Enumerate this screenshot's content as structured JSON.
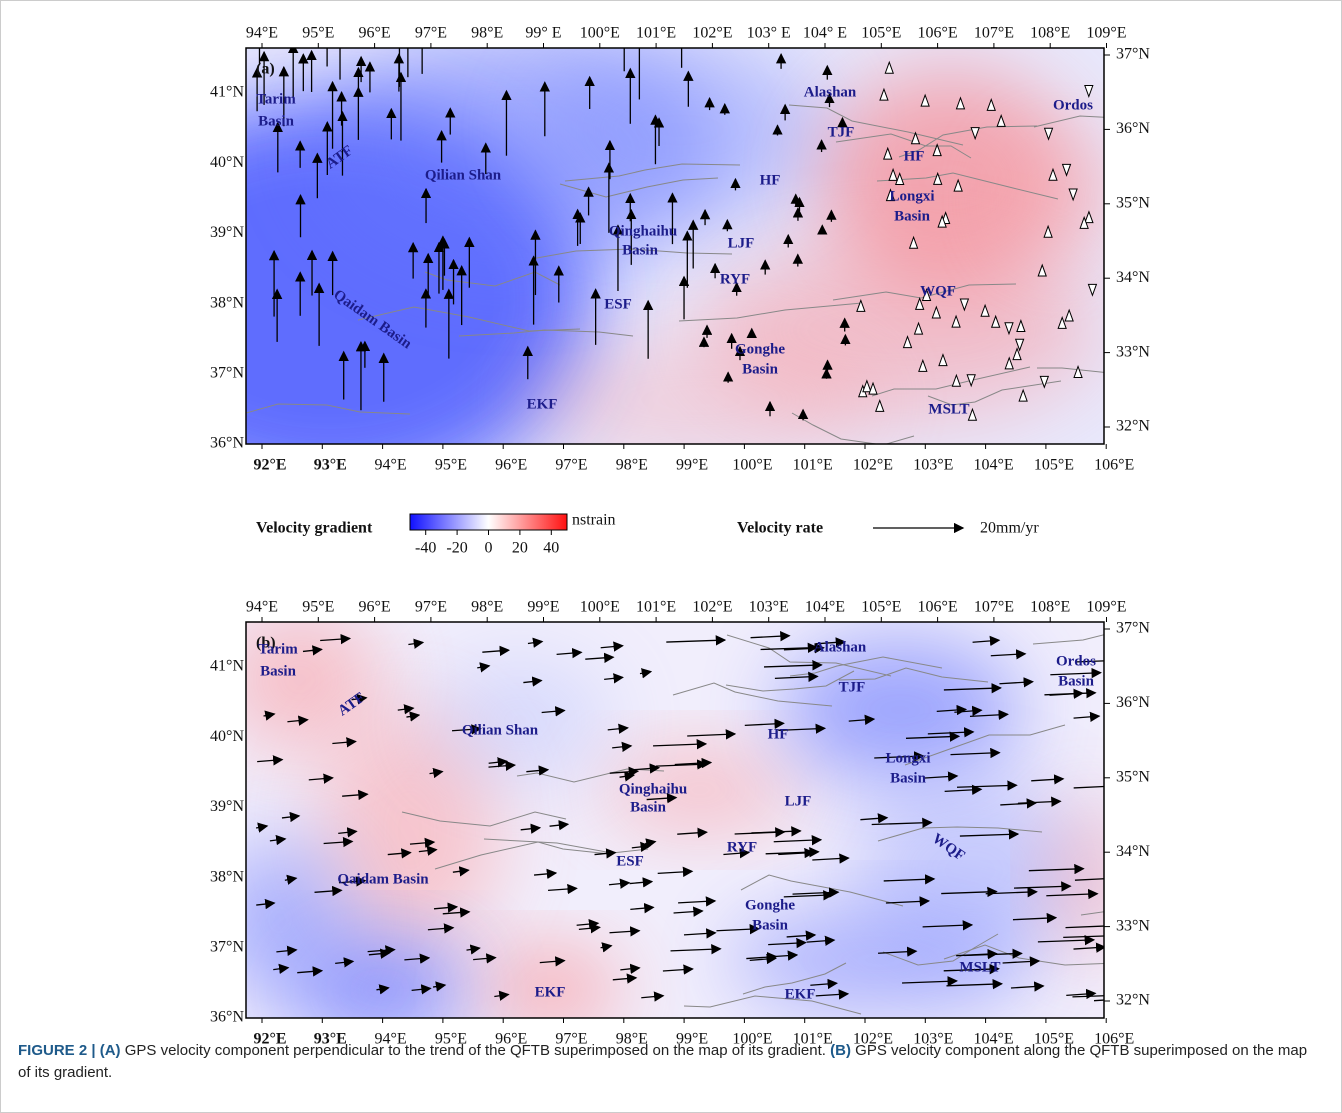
{
  "panels": [
    {
      "label": "(a)",
      "top_lon": [
        "94°E",
        "95°E",
        "96°E",
        "97°E",
        "98°E",
        "99° E",
        "100°E",
        "101°E",
        "102°E",
        "103° E",
        "104° E",
        "105°E",
        "106°E",
        "107°E",
        "108°E",
        "109°E"
      ],
      "bottom_lon": [
        "92°E",
        "93°E",
        "94°E",
        "95°E",
        "96°E",
        "97°E",
        "98°E",
        "99°E",
        "100°E",
        "101°E",
        "102°E",
        "103°E",
        "104°E",
        "105°E",
        "106°E"
      ],
      "left_lat": [
        "41°N",
        "40°N",
        "39°N",
        "38°N",
        "37°N",
        "36°N"
      ],
      "right_lat": [
        "37°N",
        "36°N",
        "35°N",
        "34°N",
        "33°N",
        "32°N"
      ],
      "regions": [
        {
          "lines": [
            "Tarim",
            "Basin"
          ]
        },
        {
          "lines": [
            "ATF"
          ]
        },
        {
          "lines": [
            "Qilian Shan"
          ]
        },
        {
          "lines": [
            "Alashan"
          ]
        },
        {
          "lines": [
            "TJF"
          ]
        },
        {
          "lines": [
            "HF"
          ]
        },
        {
          "lines": [
            "HF"
          ]
        },
        {
          "lines": [
            "Longxi",
            "Basin"
          ]
        },
        {
          "lines": [
            "Ordos"
          ]
        },
        {
          "lines": [
            "Qinghaihu",
            "Basin"
          ]
        },
        {
          "lines": [
            "LJF"
          ]
        },
        {
          "lines": [
            "RYF"
          ]
        },
        {
          "lines": [
            "ESF"
          ]
        },
        {
          "lines": [
            "Qaidam Basin"
          ]
        },
        {
          "lines": [
            "WQF"
          ]
        },
        {
          "lines": [
            "Gonghe",
            "Basin"
          ]
        },
        {
          "lines": [
            "EKF"
          ]
        },
        {
          "lines": [
            "MSLT"
          ]
        }
      ]
    },
    {
      "label": "(b)",
      "top_lon": [
        "94°E",
        "95°E",
        "96°E",
        "97°E",
        "98°E",
        "99°E",
        "100°E",
        "101°E",
        "102°E",
        "103°E",
        "104°E",
        "105°E",
        "106°E",
        "107°E",
        "108°E",
        "109°E"
      ],
      "bottom_lon": [
        "92°E",
        "93°E",
        "94°E",
        "95°E",
        "96°E",
        "97°E",
        "98°E",
        "99°E",
        "100°E",
        "101°E",
        "102°E",
        "103°E",
        "104°E",
        "105°E",
        "106°E"
      ],
      "left_lat": [
        "41°N",
        "40°N",
        "39°N",
        "38°N",
        "37°N",
        "36°N"
      ],
      "right_lat": [
        "37°N",
        "36°N",
        "35°N",
        "34°N",
        "33°N",
        "32°N"
      ],
      "regions": [
        {
          "lines": [
            "Tarim",
            "Basin"
          ]
        },
        {
          "lines": [
            "ATF"
          ]
        },
        {
          "lines": [
            "Qilian Shan"
          ]
        },
        {
          "lines": [
            "Alashan"
          ]
        },
        {
          "lines": [
            "TJF"
          ]
        },
        {
          "lines": [
            "HF"
          ]
        },
        {
          "lines": [
            "Longxi",
            "Basin"
          ]
        },
        {
          "lines": [
            "Ordos",
            "Basin"
          ]
        },
        {
          "lines": [
            "Qinghaihu",
            "Basin"
          ]
        },
        {
          "lines": [
            "LJF"
          ]
        },
        {
          "lines": [
            "RYF"
          ]
        },
        {
          "lines": [
            "ESF"
          ]
        },
        {
          "lines": [
            "Qaidam Basin"
          ]
        },
        {
          "lines": [
            "WQF"
          ]
        },
        {
          "lines": [
            "Gonghe",
            "Basin"
          ]
        },
        {
          "lines": [
            "EKF"
          ]
        },
        {
          "lines": [
            "EKF"
          ]
        },
        {
          "lines": [
            "MSLT"
          ]
        }
      ]
    }
  ],
  "legend": {
    "gradient_title": "Velocity gradient",
    "unit": "nstrain",
    "lim": [
      -50,
      50
    ],
    "ticks": [
      -40,
      -20,
      0,
      20,
      40
    ],
    "rate_title": "Velocity rate",
    "rate_label": "20mm/yr"
  },
  "caption": [
    {
      "text": "FIGURE 2 | (A)",
      "bold": true
    },
    {
      "text": "GPS velocity component perpendicular to the trend of the QFTB superimposed on the map of its gradient.",
      "bold": false
    },
    {
      "text": "(B)",
      "bold": true
    },
    {
      "text": "GPS velocity component along the QFTB superimposed on the map of its gradient.",
      "bold": false
    }
  ]
}
